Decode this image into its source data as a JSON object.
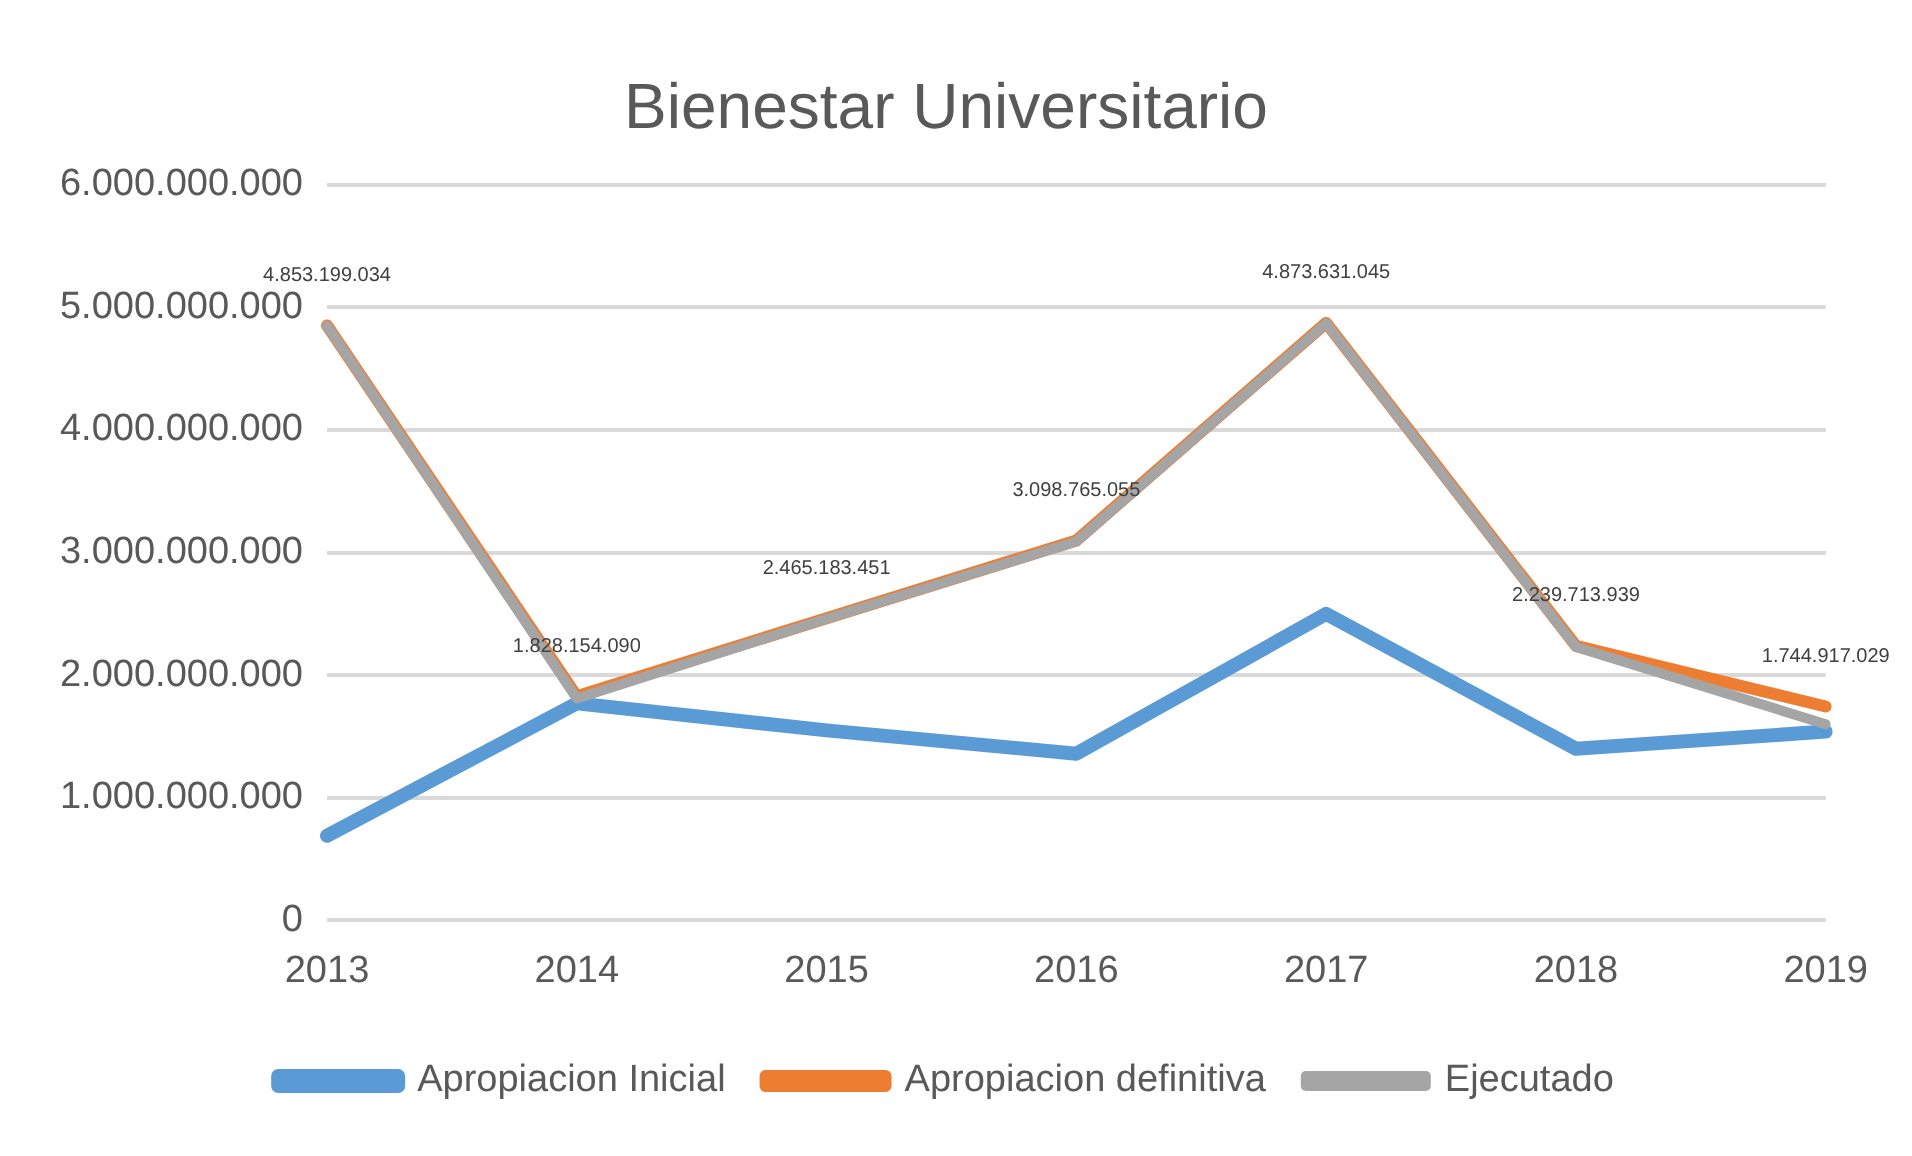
{
  "chart_data": {
    "type": "line",
    "title": "Bienestar Universitario",
    "categories": [
      "2013",
      "2014",
      "2015",
      "2016",
      "2017",
      "2018",
      "2019"
    ],
    "series": [
      {
        "name": "Apropiacion Inicial",
        "color": "#5b9bd5",
        "values": [
          690000000,
          1770000000,
          1550000000,
          1360000000,
          2500000000,
          1400000000,
          1540000000
        ]
      },
      {
        "name": "Apropiacion definitiva",
        "color": "#ed7d31",
        "values": [
          4853199034,
          1828154090,
          2465183451,
          3098765055,
          4873631045,
          2239713939,
          1744917029
        ],
        "value_labels": [
          "4.853.199.034",
          "1.828.154.090",
          "2.465.183.451",
          "3.098.765.055",
          "4.873.631.045",
          "2.239.713.939",
          "1.744.917.029"
        ]
      },
      {
        "name": "Ejecutado",
        "color": "#a5a5a5",
        "values": [
          4850000000,
          1810000000,
          2460000000,
          3090000000,
          4870000000,
          2230000000,
          1600000000
        ]
      }
    ],
    "ylim": [
      0,
      6000000000
    ],
    "yticks": [
      0,
      {
        "value": 1000000000,
        "label": "1.000.000.000"
      },
      {
        "value": 2000000000,
        "label": "2.000.000.000"
      },
      {
        "value": 3000000000,
        "label": "3.000.000.000"
      },
      {
        "value": 4000000000,
        "label": "4.000.000.000"
      },
      {
        "value": 5000000000,
        "label": "5.000.000.000"
      },
      {
        "value": 6000000000,
        "label": "6.000.000.000"
      }
    ],
    "grid": "y",
    "legend": "bottom",
    "marker": "none",
    "line_style": "solid"
  }
}
